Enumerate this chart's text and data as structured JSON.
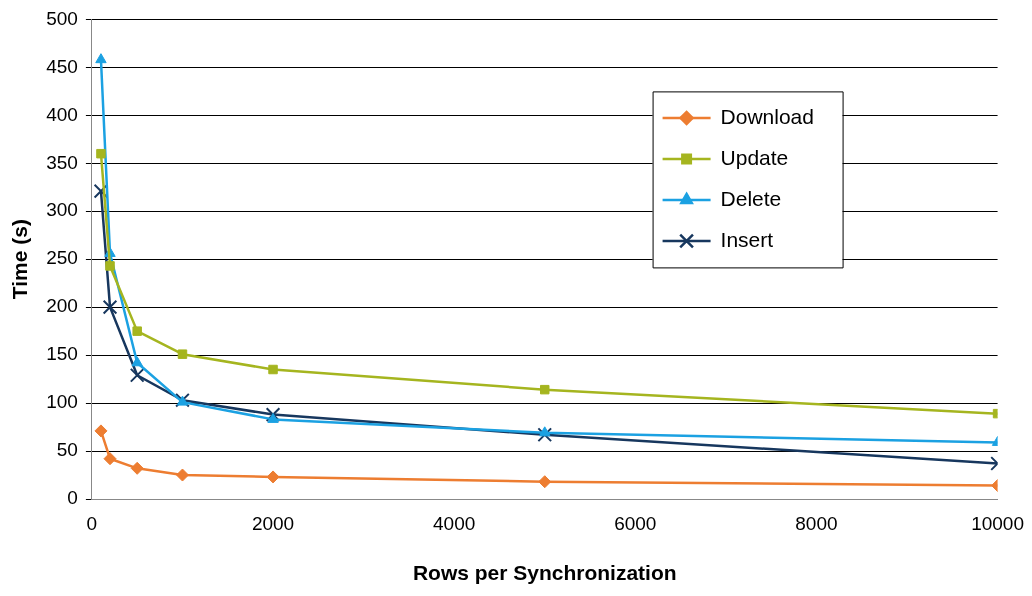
{
  "chart_data": {
    "type": "line",
    "xlabel": "Rows per Synchronization",
    "ylabel": "Time (s)",
    "x": [
      100,
      200,
      500,
      1000,
      2000,
      5000,
      10000
    ],
    "xlim": [
      0,
      10000
    ],
    "xticks": [
      0,
      2000,
      4000,
      6000,
      8000,
      10000
    ],
    "ylim": [
      0,
      500
    ],
    "yticks": [
      0,
      50,
      100,
      150,
      200,
      250,
      300,
      350,
      400,
      450,
      500
    ],
    "grid": "y",
    "legend": "top right",
    "line_style": "solid",
    "series": [
      {
        "name": "Download",
        "color": "#ed7d31",
        "marker": "diamond",
        "values": [
          71,
          42,
          32,
          25,
          23,
          18,
          14
        ]
      },
      {
        "name": "Update",
        "color": "#a5b51f",
        "marker": "square",
        "values": [
          360,
          243,
          175,
          151,
          135,
          114,
          89
        ]
      },
      {
        "name": "Delete",
        "color": "#1ba1e2",
        "marker": "triangle",
        "values": [
          458,
          256,
          142,
          101,
          83,
          69,
          59
        ]
      },
      {
        "name": "Insert",
        "color": "#17375e",
        "marker": "cross",
        "values": [
          321,
          200,
          129,
          103,
          88,
          67,
          37
        ]
      }
    ]
  }
}
